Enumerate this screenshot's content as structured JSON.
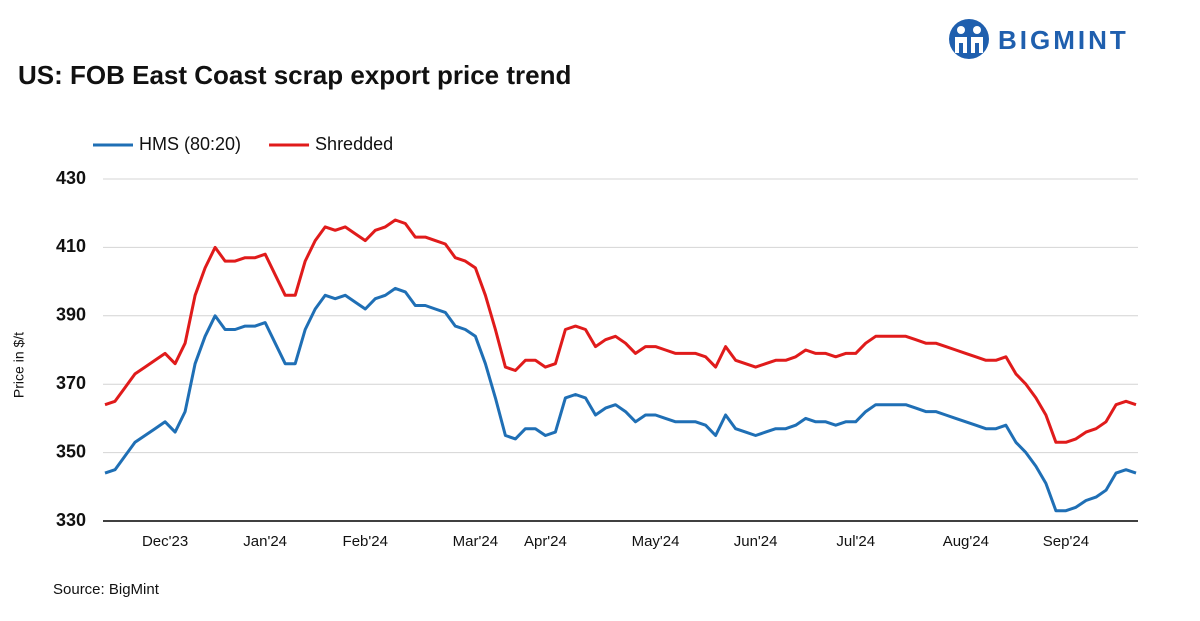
{
  "logo_text": "BIGMINT",
  "chart_data": {
    "type": "line",
    "title": "US: FOB East Coast scrap export price trend",
    "y_label": "Price in $/t",
    "source": "Source: BigMint",
    "categories": [
      null,
      null,
      null,
      null,
      null,
      null,
      "Dec'23",
      null,
      null,
      null,
      null,
      null,
      null,
      null,
      null,
      null,
      "Jan'24",
      null,
      null,
      null,
      null,
      null,
      null,
      null,
      null,
      null,
      "Feb'24",
      null,
      null,
      null,
      null,
      null,
      null,
      null,
      null,
      null,
      null,
      "Mar'24",
      null,
      null,
      null,
      null,
      null,
      null,
      "Apr'24",
      null,
      null,
      null,
      null,
      null,
      null,
      null,
      null,
      null,
      null,
      "May'24",
      null,
      null,
      null,
      null,
      null,
      null,
      null,
      null,
      null,
      "Jun'24",
      null,
      null,
      null,
      null,
      null,
      null,
      null,
      null,
      null,
      "Jul'24",
      null,
      null,
      null,
      null,
      null,
      null,
      null,
      null,
      null,
      null,
      "Aug'24",
      null,
      null,
      null,
      null,
      null,
      null,
      null,
      null,
      null,
      "Sep'24",
      null,
      null,
      null,
      null,
      null,
      null,
      null
    ],
    "series": [
      {
        "name": "HMS (80:20)",
        "color": "#1f6fb5",
        "values": [
          344,
          345,
          349,
          353,
          355,
          357,
          359,
          356,
          362,
          376,
          384,
          390,
          386,
          386,
          387,
          387,
          388,
          382,
          376,
          376,
          386,
          392,
          396,
          395,
          396,
          394,
          392,
          395,
          396,
          398,
          397,
          393,
          393,
          392,
          391,
          387,
          386,
          384,
          376,
          366,
          355,
          354,
          357,
          357,
          355,
          356,
          366,
          367,
          366,
          361,
          363,
          364,
          362,
          359,
          361,
          361,
          360,
          359,
          359,
          359,
          358,
          355,
          361,
          357,
          356,
          355,
          356,
          357,
          357,
          358,
          360,
          359,
          359,
          358,
          359,
          359,
          362,
          364,
          364,
          364,
          364,
          363,
          362,
          362,
          361,
          360,
          359,
          358,
          357,
          357,
          358,
          353,
          350,
          346,
          341,
          333,
          333,
          334,
          336,
          337,
          339,
          344,
          345,
          344
        ]
      },
      {
        "name": "Shredded",
        "color": "#e01b1b",
        "values": [
          364,
          365,
          369,
          373,
          375,
          377,
          379,
          376,
          382,
          396,
          404,
          410,
          406,
          406,
          407,
          407,
          408,
          402,
          396,
          396,
          406,
          412,
          416,
          415,
          416,
          414,
          412,
          415,
          416,
          418,
          417,
          413,
          413,
          412,
          411,
          407,
          406,
          404,
          396,
          386,
          375,
          374,
          377,
          377,
          375,
          376,
          386,
          387,
          386,
          381,
          383,
          384,
          382,
          379,
          381,
          381,
          380,
          379,
          379,
          379,
          378,
          375,
          381,
          377,
          376,
          375,
          376,
          377,
          377,
          378,
          380,
          379,
          379,
          378,
          379,
          379,
          382,
          384,
          384,
          384,
          384,
          383,
          382,
          382,
          381,
          380,
          379,
          378,
          377,
          377,
          378,
          373,
          370,
          366,
          361,
          353,
          353,
          354,
          356,
          357,
          359,
          364,
          365,
          364
        ]
      }
    ],
    "ylim": [
      330,
      430
    ],
    "yticks": [
      330,
      350,
      370,
      390,
      410,
      430
    ],
    "grid": true,
    "legend": "top-left"
  }
}
